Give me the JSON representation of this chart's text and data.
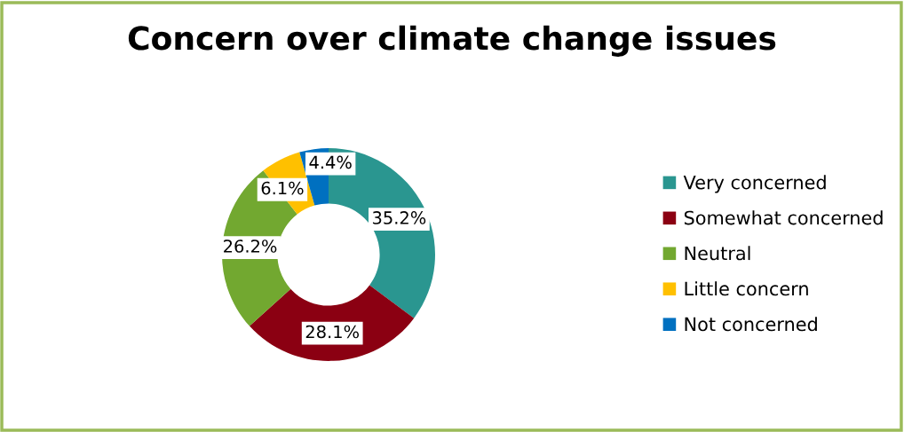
{
  "chart_data": {
    "type": "donut",
    "title": "Concern over climate change issues",
    "categories": [
      "Very concerned",
      "Somewhat concerned",
      "Neutral",
      "Little concern",
      "Not concerned"
    ],
    "values": [
      35.2,
      28.1,
      26.2,
      6.1,
      4.4
    ],
    "colors": [
      "#2a9690",
      "#8b0012",
      "#72a830",
      "#ffc000",
      "#0070c0"
    ],
    "value_labels": [
      "35.2%",
      "28.1%",
      "26.2%",
      "6.1%",
      "4.4%"
    ],
    "legend": "right"
  }
}
